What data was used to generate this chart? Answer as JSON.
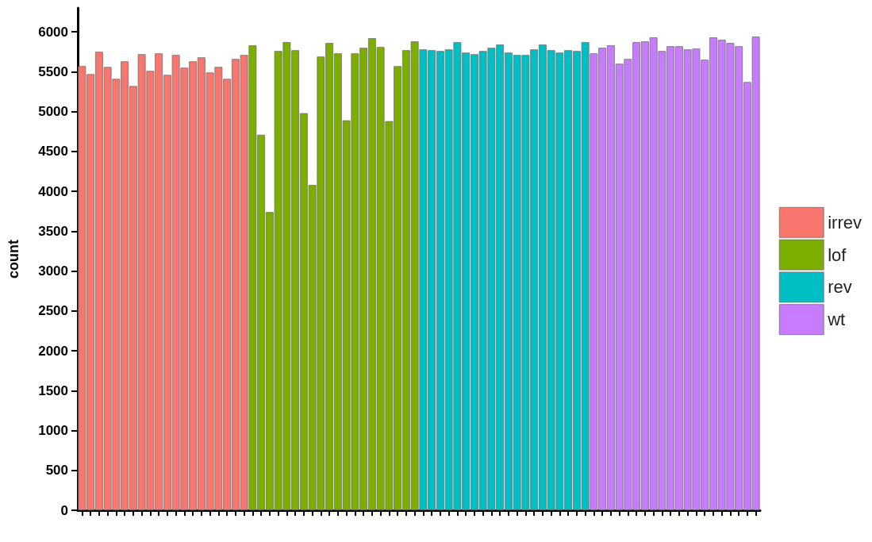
{
  "chart_data": {
    "type": "bar",
    "ylabel": "count",
    "categories": [
      null,
      null,
      null,
      null,
      null,
      null,
      null,
      null,
      null,
      null,
      null,
      null,
      null,
      null,
      null,
      null,
      null,
      null,
      null,
      null,
      null,
      null,
      null,
      null,
      null,
      null,
      null,
      null,
      null,
      null,
      null,
      null,
      null,
      null,
      null,
      null,
      null,
      null,
      null,
      null,
      null,
      null,
      null,
      null,
      null,
      null,
      null,
      null,
      null,
      null,
      null,
      null,
      null,
      null,
      null,
      null,
      null,
      null,
      null,
      null,
      null,
      null,
      null,
      null,
      null,
      null,
      null,
      null,
      null,
      null,
      null,
      null,
      null,
      null,
      null,
      null,
      null,
      null,
      null,
      null
    ],
    "series": [
      {
        "name": "irrev",
        "color": "#f8766d",
        "values": [
          5570,
          5470,
          5750,
          5560,
          5410,
          5630,
          5320,
          5720,
          5510,
          5730,
          5460,
          5710,
          5550,
          5630,
          5680,
          5490,
          5560,
          5410,
          5660,
          5710,
          null,
          null,
          null,
          null,
          null,
          null,
          null,
          null,
          null,
          null,
          null,
          null,
          null,
          null,
          null,
          null,
          null,
          null,
          null,
          null,
          null,
          null,
          null,
          null,
          null,
          null,
          null,
          null,
          null,
          null,
          null,
          null,
          null,
          null,
          null,
          null,
          null,
          null,
          null,
          null,
          null,
          null,
          null,
          null,
          null,
          null,
          null,
          null,
          null,
          null,
          null,
          null,
          null,
          null,
          null,
          null,
          null,
          null,
          null,
          null
        ]
      },
      {
        "name": "lof",
        "color": "#7cae00",
        "values": [
          null,
          null,
          null,
          null,
          null,
          null,
          null,
          null,
          null,
          null,
          null,
          null,
          null,
          null,
          null,
          null,
          null,
          null,
          null,
          null,
          5830,
          4710,
          3740,
          5760,
          5870,
          5770,
          4980,
          4080,
          5690,
          5860,
          5730,
          4890,
          5730,
          5800,
          5920,
          5810,
          4880,
          5570,
          5770,
          5880,
          null,
          null,
          null,
          null,
          null,
          null,
          null,
          null,
          null,
          null,
          null,
          null,
          null,
          null,
          null,
          null,
          null,
          null,
          null,
          null,
          null,
          null,
          null,
          null,
          null,
          null,
          null,
          null,
          null,
          null,
          null,
          null,
          null,
          null,
          null,
          null,
          null,
          null,
          null,
          null
        ]
      },
      {
        "name": "rev",
        "color": "#00bfc4",
        "values": [
          null,
          null,
          null,
          null,
          null,
          null,
          null,
          null,
          null,
          null,
          null,
          null,
          null,
          null,
          null,
          null,
          null,
          null,
          null,
          null,
          null,
          null,
          null,
          null,
          null,
          null,
          null,
          null,
          null,
          null,
          null,
          null,
          null,
          null,
          null,
          null,
          null,
          null,
          null,
          null,
          5780,
          5770,
          5760,
          5780,
          5870,
          5740,
          5720,
          5760,
          5800,
          5840,
          5740,
          5710,
          5710,
          5780,
          5840,
          5770,
          5740,
          5770,
          5760,
          5870,
          null,
          null,
          null,
          null,
          null,
          null,
          null,
          null,
          null,
          null,
          null,
          null,
          null,
          null,
          null,
          null,
          null,
          null,
          null,
          null
        ]
      },
      {
        "name": "wt",
        "color": "#c77cff",
        "values": [
          null,
          null,
          null,
          null,
          null,
          null,
          null,
          null,
          null,
          null,
          null,
          null,
          null,
          null,
          null,
          null,
          null,
          null,
          null,
          null,
          null,
          null,
          null,
          null,
          null,
          null,
          null,
          null,
          null,
          null,
          null,
          null,
          null,
          null,
          null,
          null,
          null,
          null,
          null,
          null,
          null,
          null,
          null,
          null,
          null,
          null,
          null,
          null,
          null,
          null,
          null,
          null,
          null,
          null,
          null,
          null,
          null,
          null,
          null,
          null,
          5730,
          5800,
          5830,
          5600,
          5660,
          5870,
          5880,
          5930,
          5760,
          5820,
          5820,
          5780,
          5790,
          5650,
          5930,
          5900,
          5860,
          5820,
          5370,
          5940
        ]
      }
    ],
    "ylim": [
      0,
      6300
    ],
    "yticks": [
      0,
      500,
      1000,
      1500,
      2000,
      2500,
      3000,
      3500,
      4000,
      4500,
      5000,
      5500,
      6000
    ],
    "legend": "right",
    "tick_labels": "y"
  }
}
